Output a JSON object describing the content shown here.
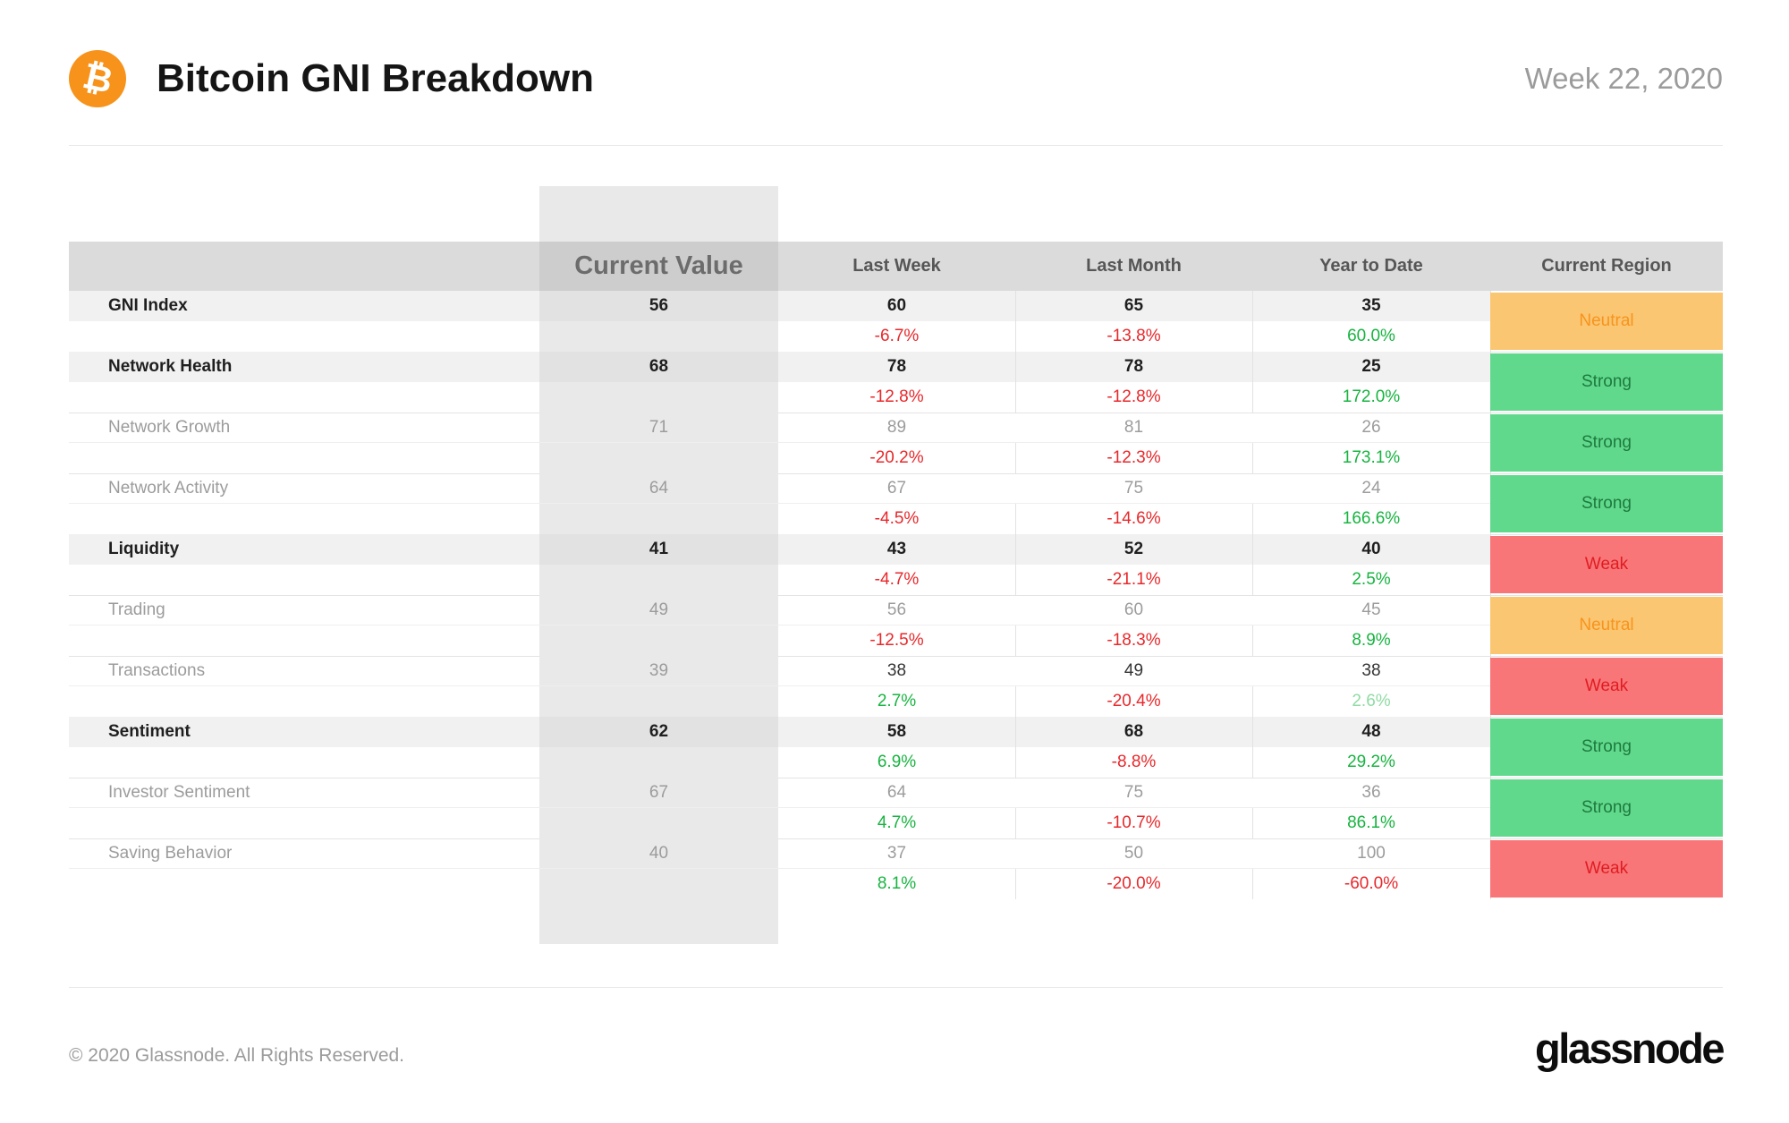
{
  "header": {
    "title": "Bitcoin GNI Breakdown",
    "date": "Week 22, 2020",
    "bitcoin_symbol": "₿",
    "bitcoin_color": "#f7931a"
  },
  "chart_data": {
    "type": "table",
    "title": "Bitcoin GNI Breakdown",
    "subtitle": "Week 22, 2020",
    "columns": [
      "",
      "Current Value",
      "Last Week",
      "Last Month",
      "Year to Date",
      "Current Region"
    ],
    "rows": [
      {
        "label": "GNI Index",
        "bold": true,
        "dark_values": false,
        "current": "56",
        "last_week": "60",
        "last_week_change": "-6.7%",
        "last_week_dir": "neg",
        "last_month": "65",
        "last_month_change": "-13.8%",
        "last_month_dir": "neg",
        "ytd": "35",
        "ytd_change": "60.0%",
        "ytd_dir": "pos",
        "region": "Neutral",
        "region_type": "neutral"
      },
      {
        "label": "Network Health",
        "bold": true,
        "dark_values": false,
        "current": "68",
        "last_week": "78",
        "last_week_change": "-12.8%",
        "last_week_dir": "neg",
        "last_month": "78",
        "last_month_change": "-12.8%",
        "last_month_dir": "neg",
        "ytd": "25",
        "ytd_change": "172.0%",
        "ytd_dir": "pos",
        "region": "Strong",
        "region_type": "strong"
      },
      {
        "label": "Network Growth",
        "bold": false,
        "dark_values": false,
        "current": "71",
        "last_week": "89",
        "last_week_change": "-20.2%",
        "last_week_dir": "neg",
        "last_month": "81",
        "last_month_change": "-12.3%",
        "last_month_dir": "neg",
        "ytd": "26",
        "ytd_change": "173.1%",
        "ytd_dir": "pos",
        "region": "Strong",
        "region_type": "strong"
      },
      {
        "label": "Network Activity",
        "bold": false,
        "dark_values": false,
        "current": "64",
        "last_week": "67",
        "last_week_change": "-4.5%",
        "last_week_dir": "neg",
        "last_month": "75",
        "last_month_change": "-14.6%",
        "last_month_dir": "neg",
        "ytd": "24",
        "ytd_change": "166.6%",
        "ytd_dir": "pos",
        "region": "Strong",
        "region_type": "strong"
      },
      {
        "label": "Liquidity",
        "bold": true,
        "dark_values": false,
        "current": "41",
        "last_week": "43",
        "last_week_change": "-4.7%",
        "last_week_dir": "neg",
        "last_month": "52",
        "last_month_change": "-21.1%",
        "last_month_dir": "neg",
        "ytd": "40",
        "ytd_change": "2.5%",
        "ytd_dir": "pos",
        "region": "Weak",
        "region_type": "weak"
      },
      {
        "label": "Trading",
        "bold": false,
        "dark_values": false,
        "current": "49",
        "last_week": "56",
        "last_week_change": "-12.5%",
        "last_week_dir": "neg",
        "last_month": "60",
        "last_month_change": "-18.3%",
        "last_month_dir": "neg",
        "ytd": "45",
        "ytd_change": "8.9%",
        "ytd_dir": "pos",
        "region": "Neutral",
        "region_type": "neutral"
      },
      {
        "label": "Transactions",
        "bold": false,
        "dark_values": true,
        "current": "39",
        "last_week": "38",
        "last_week_change": "2.7%",
        "last_week_dir": "pos",
        "last_month": "49",
        "last_month_change": "-20.4%",
        "last_month_dir": "neg",
        "ytd": "38",
        "ytd_change": "2.6%",
        "ytd_dir": "pos-light",
        "region": "Weak",
        "region_type": "weak"
      },
      {
        "label": "Sentiment",
        "bold": true,
        "dark_values": false,
        "current": "62",
        "last_week": "58",
        "last_week_change": "6.9%",
        "last_week_dir": "pos",
        "last_month": "68",
        "last_month_change": "-8.8%",
        "last_month_dir": "neg",
        "ytd": "48",
        "ytd_change": "29.2%",
        "ytd_dir": "pos",
        "region": "Strong",
        "region_type": "strong"
      },
      {
        "label": "Investor Sentiment",
        "bold": false,
        "dark_values": false,
        "current": "67",
        "last_week": "64",
        "last_week_change": "4.7%",
        "last_week_dir": "pos",
        "last_month": "75",
        "last_month_change": "-10.7%",
        "last_month_dir": "neg",
        "ytd": "36",
        "ytd_change": "86.1%",
        "ytd_dir": "pos",
        "region": "Strong",
        "region_type": "strong"
      },
      {
        "label": "Saving Behavior",
        "bold": false,
        "dark_values": false,
        "current": "40",
        "last_week": "37",
        "last_week_change": "8.1%",
        "last_week_dir": "pos",
        "last_month": "50",
        "last_month_change": "-20.0%",
        "last_month_dir": "neg",
        "ytd": "100",
        "ytd_change": "-60.0%",
        "ytd_dir": "neg",
        "region": "Weak",
        "region_type": "weak"
      }
    ],
    "legend_position": "none",
    "region_values": [
      "Strong",
      "Neutral",
      "Weak"
    ]
  },
  "colors": {
    "positive": "#17b440",
    "positive_faded": "#90dba4",
    "negative": "#e8282b",
    "badge_neutral_bg": "#fbc672",
    "badge_neutral_text": "#f7941d",
    "badge_strong_bg": "#61d98c",
    "badge_strong_text": "#1d7a3e",
    "badge_weak_bg": "#f97678",
    "badge_weak_text": "#e01c22",
    "header_row_bg": "#dbdbdb",
    "highlight_column_bg": "#e9e9e9",
    "bitcoin_orange": "#f7931a"
  },
  "footer": {
    "copyright": "© 2020 Glassnode. All Rights Reserved.",
    "logo_text": "glassnode"
  }
}
